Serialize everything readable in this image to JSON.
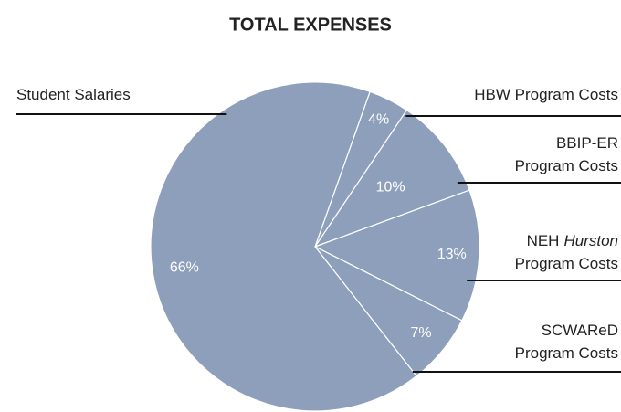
{
  "chart_data": {
    "type": "pie",
    "title": "TOTAL EXPENSES",
    "labels": [
      [
        [
          "HBW Program Costs"
        ]
      ],
      [
        [
          "BBIP-ER"
        ],
        [
          "Program Costs"
        ]
      ],
      [
        [
          "NEH",
          "Hurston"
        ],
        [
          "Program Costs"
        ]
      ],
      [
        [
          "SCWAReD"
        ],
        [
          "Program Costs"
        ]
      ],
      [
        [
          "Student Salaries"
        ]
      ]
    ],
    "italic": [
      [
        2,
        0,
        1
      ]
    ],
    "values": [
      4,
      10,
      13,
      7,
      66
    ],
    "value_labels": [
      "4%",
      "10%",
      "13%",
      "7%",
      "66%"
    ],
    "color": "#8d9fba"
  }
}
